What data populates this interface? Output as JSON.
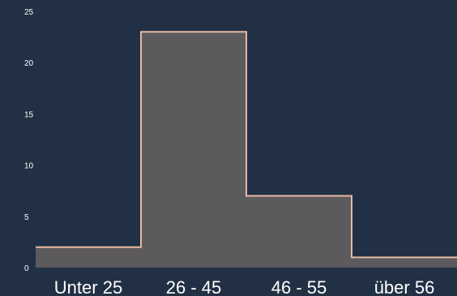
{
  "chart_data": {
    "type": "area",
    "style": "step",
    "categories": [
      "Unter 25",
      "26 - 45",
      "46 - 55",
      "über 56"
    ],
    "values": [
      2,
      23,
      7,
      1
    ],
    "yticks": [
      0,
      5,
      10,
      15,
      20,
      25
    ],
    "ylim": [
      0,
      25
    ],
    "grid": false,
    "legend": "none",
    "colors": {
      "background": "#213044",
      "fill": "#5c5a5d",
      "stroke": "#e8b9a3",
      "text": "#ffffff"
    }
  }
}
